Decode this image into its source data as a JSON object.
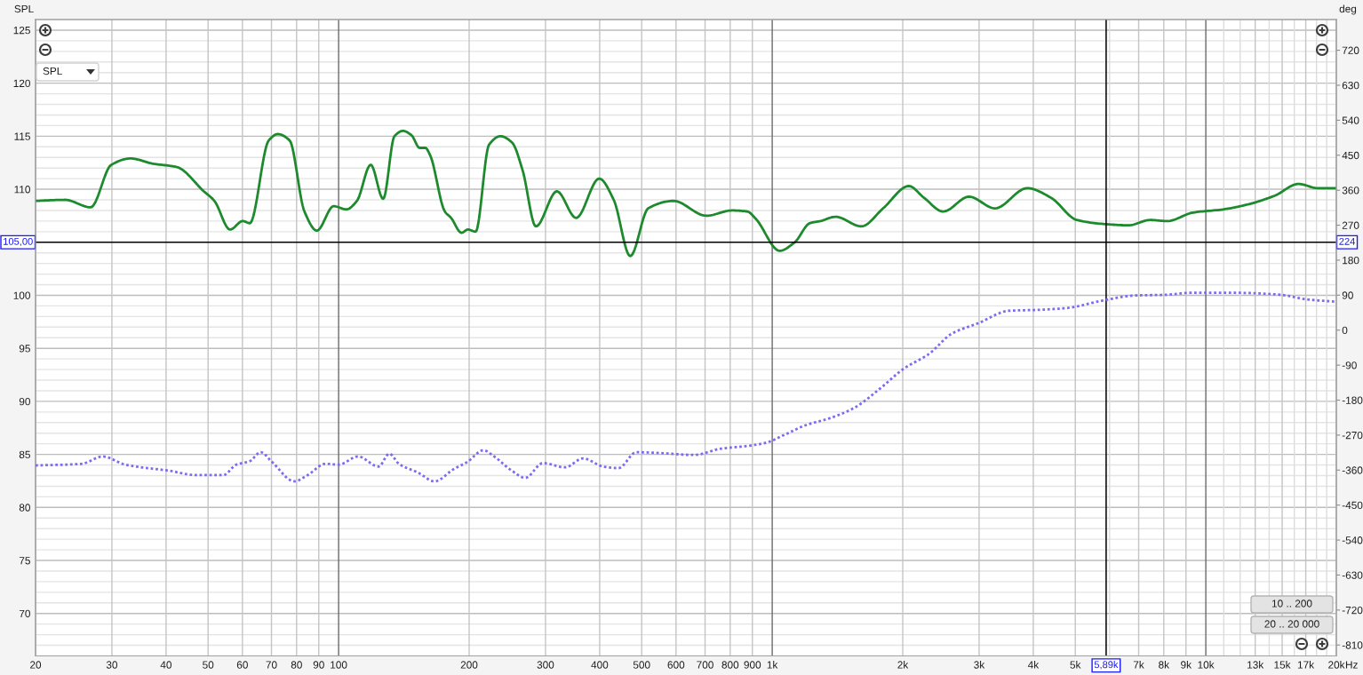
{
  "chart_data": {
    "type": "line",
    "ylabel": "SPL",
    "y2label": "deg",
    "xlabel": "Hz",
    "log": "x",
    "xlim": [
      20,
      20000
    ],
    "ylim": [
      66,
      126
    ],
    "y2lim": [
      -838,
      799
    ],
    "xticks": [
      20,
      30,
      40,
      50,
      60,
      70,
      80,
      90,
      100,
      200,
      300,
      400,
      500,
      600,
      700,
      800,
      900,
      {
        "value": 1000,
        "label": "1k"
      },
      {
        "value": 2000,
        "label": "2k"
      },
      {
        "value": 3000,
        "label": "3k"
      },
      {
        "value": 4000,
        "label": "4k"
      },
      {
        "value": 5000,
        "label": "5k"
      },
      {
        "value": 6000,
        "label": null
      },
      {
        "value": 7000,
        "label": "7k"
      },
      {
        "value": 8000,
        "label": "8k"
      },
      {
        "value": 9000,
        "label": "9k"
      },
      {
        "value": 10000,
        "label": "10k"
      },
      {
        "value": 11000,
        "label": null
      },
      {
        "value": 12000,
        "label": null
      },
      {
        "value": 13000,
        "label": "13k"
      },
      {
        "value": 14000,
        "label": null
      },
      {
        "value": 15000,
        "label": "15k"
      },
      {
        "value": 16000,
        "label": null
      },
      {
        "value": 17000,
        "label": "17k"
      },
      {
        "value": 18000,
        "label": null
      },
      {
        "value": 19000,
        "label": null
      },
      {
        "value": 20000,
        "label": "20k"
      }
    ],
    "yticks": [
      {
        "value": 67,
        "label": null
      },
      {
        "value": 68,
        "label": null
      },
      {
        "value": 69,
        "label": null
      },
      70,
      {
        "value": 71,
        "label": null
      },
      {
        "value": 72,
        "label": null
      },
      {
        "value": 73,
        "label": null
      },
      {
        "value": 74,
        "label": null
      },
      75,
      {
        "value": 76,
        "label": null
      },
      {
        "value": 77,
        "label": null
      },
      {
        "value": 78,
        "label": null
      },
      {
        "value": 79,
        "label": null
      },
      80,
      {
        "value": 81,
        "label": null
      },
      {
        "value": 82,
        "label": null
      },
      {
        "value": 83,
        "label": null
      },
      {
        "value": 84,
        "label": null
      },
      85,
      {
        "value": 86,
        "label": null
      },
      {
        "value": 87,
        "label": null
      },
      {
        "value": 88,
        "label": null
      },
      {
        "value": 89,
        "label": null
      },
      90,
      {
        "value": 91,
        "label": null
      },
      {
        "value": 92,
        "label": null
      },
      {
        "value": 93,
        "label": null
      },
      {
        "value": 94,
        "label": null
      },
      95,
      {
        "value": 96,
        "label": null
      },
      {
        "value": 97,
        "label": null
      },
      {
        "value": 98,
        "label": null
      },
      {
        "value": 99,
        "label": null
      },
      100,
      {
        "value": 101,
        "label": null
      },
      {
        "value": 102,
        "label": null
      },
      {
        "value": 103,
        "label": null
      },
      {
        "value": 104,
        "label": null
      },
      {
        "value": 106,
        "label": null
      },
      {
        "value": 107,
        "label": null
      },
      {
        "value": 108,
        "label": null
      },
      {
        "value": 109,
        "label": null
      },
      110,
      {
        "value": 111,
        "label": null
      },
      {
        "value": 112,
        "label": null
      },
      {
        "value": 113,
        "label": null
      },
      {
        "value": 114,
        "label": null
      },
      115,
      {
        "value": 116,
        "label": null
      },
      {
        "value": 117,
        "label": null
      },
      {
        "value": 118,
        "label": null
      },
      {
        "value": 119,
        "label": null
      },
      120,
      {
        "value": 121,
        "label": null
      },
      {
        "value": 122,
        "label": null
      },
      {
        "value": 123,
        "label": null
      },
      {
        "value": 124,
        "label": null
      },
      125
    ],
    "y2ticks": [
      -810,
      -720,
      -630,
      -540,
      -450,
      -360,
      -270,
      -180,
      -90,
      0,
      90,
      180,
      270,
      360,
      450,
      540,
      630,
      720
    ],
    "grid": true,
    "series": [
      {
        "color": "#1e8a2e",
        "line_style": "solid",
        "x": [
          20,
          23.4,
          26.8,
          29.9,
          33.1,
          37.4,
          42.3,
          48.9,
          51.7,
          56.2,
          60.1,
          62.4,
          69,
          72.4,
          77.1,
          83.4,
          89.1,
          97.4,
          104.2,
          110.2,
          118.6,
          126.7,
          134.5,
          140.7,
          147.2,
          153.8,
          158.5,
          162.6,
          175.8,
          181.7,
          192.1,
          198.7,
          207,
          222.3,
          236.1,
          251.2,
          265.6,
          285.1,
          318.7,
          353,
          399,
          431,
          470.6,
          517.8,
          591.6,
          704.7,
          808,
          876,
          917,
          1040,
          1127,
          1221,
          1292,
          1400,
          1606,
          1802,
          2066,
          2238,
          2480,
          2843,
          3263,
          3874,
          4394,
          5041,
          5911,
          6634,
          7437,
          8145,
          9346,
          10969,
          12583,
          14431,
          16360,
          18122,
          20000
        ],
        "values": [
          108.9,
          109.0,
          108.3,
          112.3,
          112.9,
          112.4,
          112.1,
          109.8,
          108.9,
          106.2,
          107.0,
          106.8,
          114.6,
          115.2,
          114.6,
          107.9,
          106.1,
          108.4,
          108.1,
          108.9,
          112.3,
          109.1,
          115.0,
          115.5,
          115.1,
          113.9,
          113.9,
          113.2,
          107.9,
          107.3,
          105.9,
          106.2,
          106.0,
          114.2,
          115.0,
          114.4,
          111.8,
          106.5,
          109.8,
          107.3,
          111.0,
          109.0,
          103.7,
          108.2,
          108.9,
          107.5,
          108.0,
          107.9,
          107.2,
          104.2,
          105.0,
          106.8,
          107.0,
          107.4,
          106.5,
          108.2,
          110.3,
          109.2,
          107.9,
          109.3,
          108.2,
          110.1,
          109.2,
          107.1,
          106.7,
          106.6,
          107.1,
          107.0,
          107.8,
          108.1,
          108.6,
          109.4,
          110.5,
          110.1,
          110.1
        ]
      },
      {
        "color": "#7b6cf0",
        "line_style": "dotted",
        "axis": "y2",
        "x": [
          20,
          25.5,
          28.6,
          32.2,
          40.8,
          47,
          54.2,
          58.1,
          62.4,
          66.1,
          70.2,
          79,
          84.8,
          93.2,
          100,
          110.9,
          123.6,
          130.9,
          137.8,
          152.8,
          166.4,
          184.5,
          198.1,
          215.8,
          228.4,
          251.2,
          269.4,
          296,
          333,
          366,
          408,
          442,
          486,
          547,
          660,
          761,
          876,
          972,
          1059,
          1191,
          1371,
          1545,
          1779,
          2000,
          2306,
          2595,
          2988,
          3524,
          4061,
          4786,
          5781,
          6823,
          8050,
          9271,
          11740,
          14870,
          17130,
          20000
        ],
        "values": [
          -348,
          -344,
          -325,
          -346,
          -362,
          -373,
          -373,
          -346,
          -337,
          -314,
          -339,
          -389,
          -373,
          -344,
          -346,
          -325,
          -351,
          -318,
          -344,
          -367,
          -389,
          -357,
          -339,
          -309,
          -325,
          -362,
          -380,
          -342,
          -353,
          -330,
          -351,
          -355,
          -314,
          -316,
          -321,
          -305,
          -298,
          -289,
          -271,
          -245,
          -225,
          -200,
          -149,
          -101,
          -60,
          -9,
          18,
          50,
          52,
          57,
          76,
          89,
          91,
          96,
          96,
          91,
          79,
          73
        ]
      }
    ],
    "ref_lines": [
      {
        "axis": "x",
        "value": 5890,
        "label": "5,89k",
        "color": "#000000"
      },
      {
        "axis": "y",
        "value": 105,
        "label": "105,00",
        "color": "#000000"
      }
    ],
    "annotations": [
      "SPL",
      "10 .. 200",
      "20 .. 20 000",
      "224"
    ]
  }
}
